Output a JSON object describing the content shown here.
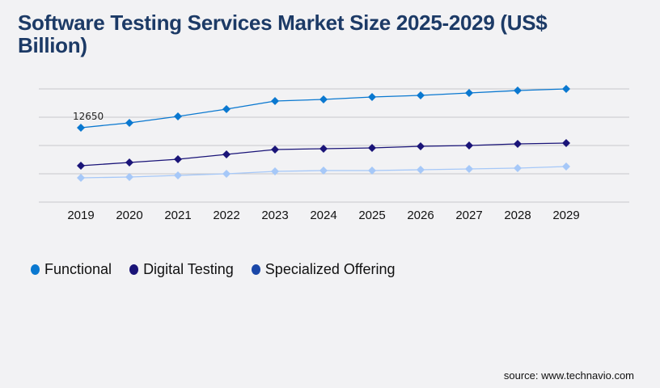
{
  "title": "Software Testing Services Market Size 2025-2029 (US$ Billion)",
  "source": "source: www.technavio.com",
  "chart_data": {
    "type": "line",
    "title": "Software Testing Services Market Size 2025-2029 (US$ Billion)",
    "x": [
      "2019",
      "2020",
      "2021",
      "2022",
      "2023",
      "2024",
      "2025",
      "2026",
      "2027",
      "2028",
      "2029"
    ],
    "ylim": [
      0,
      19250
    ],
    "grid": true,
    "legend": "bottom-left",
    "annotations": [
      {
        "series": "Functional",
        "x": "2019",
        "text": "12650"
      }
    ],
    "series": [
      {
        "name": "Functional",
        "color": "#0a78d0",
        "values": [
          12650,
          13480,
          14580,
          15810,
          17190,
          17460,
          17880,
          18150,
          18560,
          18980,
          19250
        ]
      },
      {
        "name": "Digital Testing",
        "color": "#1a1478",
        "values": [
          6190,
          6740,
          7290,
          8110,
          8940,
          9080,
          9210,
          9490,
          9630,
          9900,
          10040
        ]
      },
      {
        "name": "Specialized Offering",
        "color": "#a6c8f8",
        "legend_color": "#1a47a8",
        "values": [
          4130,
          4260,
          4540,
          4810,
          5230,
          5360,
          5360,
          5500,
          5640,
          5780,
          6050
        ]
      }
    ]
  }
}
